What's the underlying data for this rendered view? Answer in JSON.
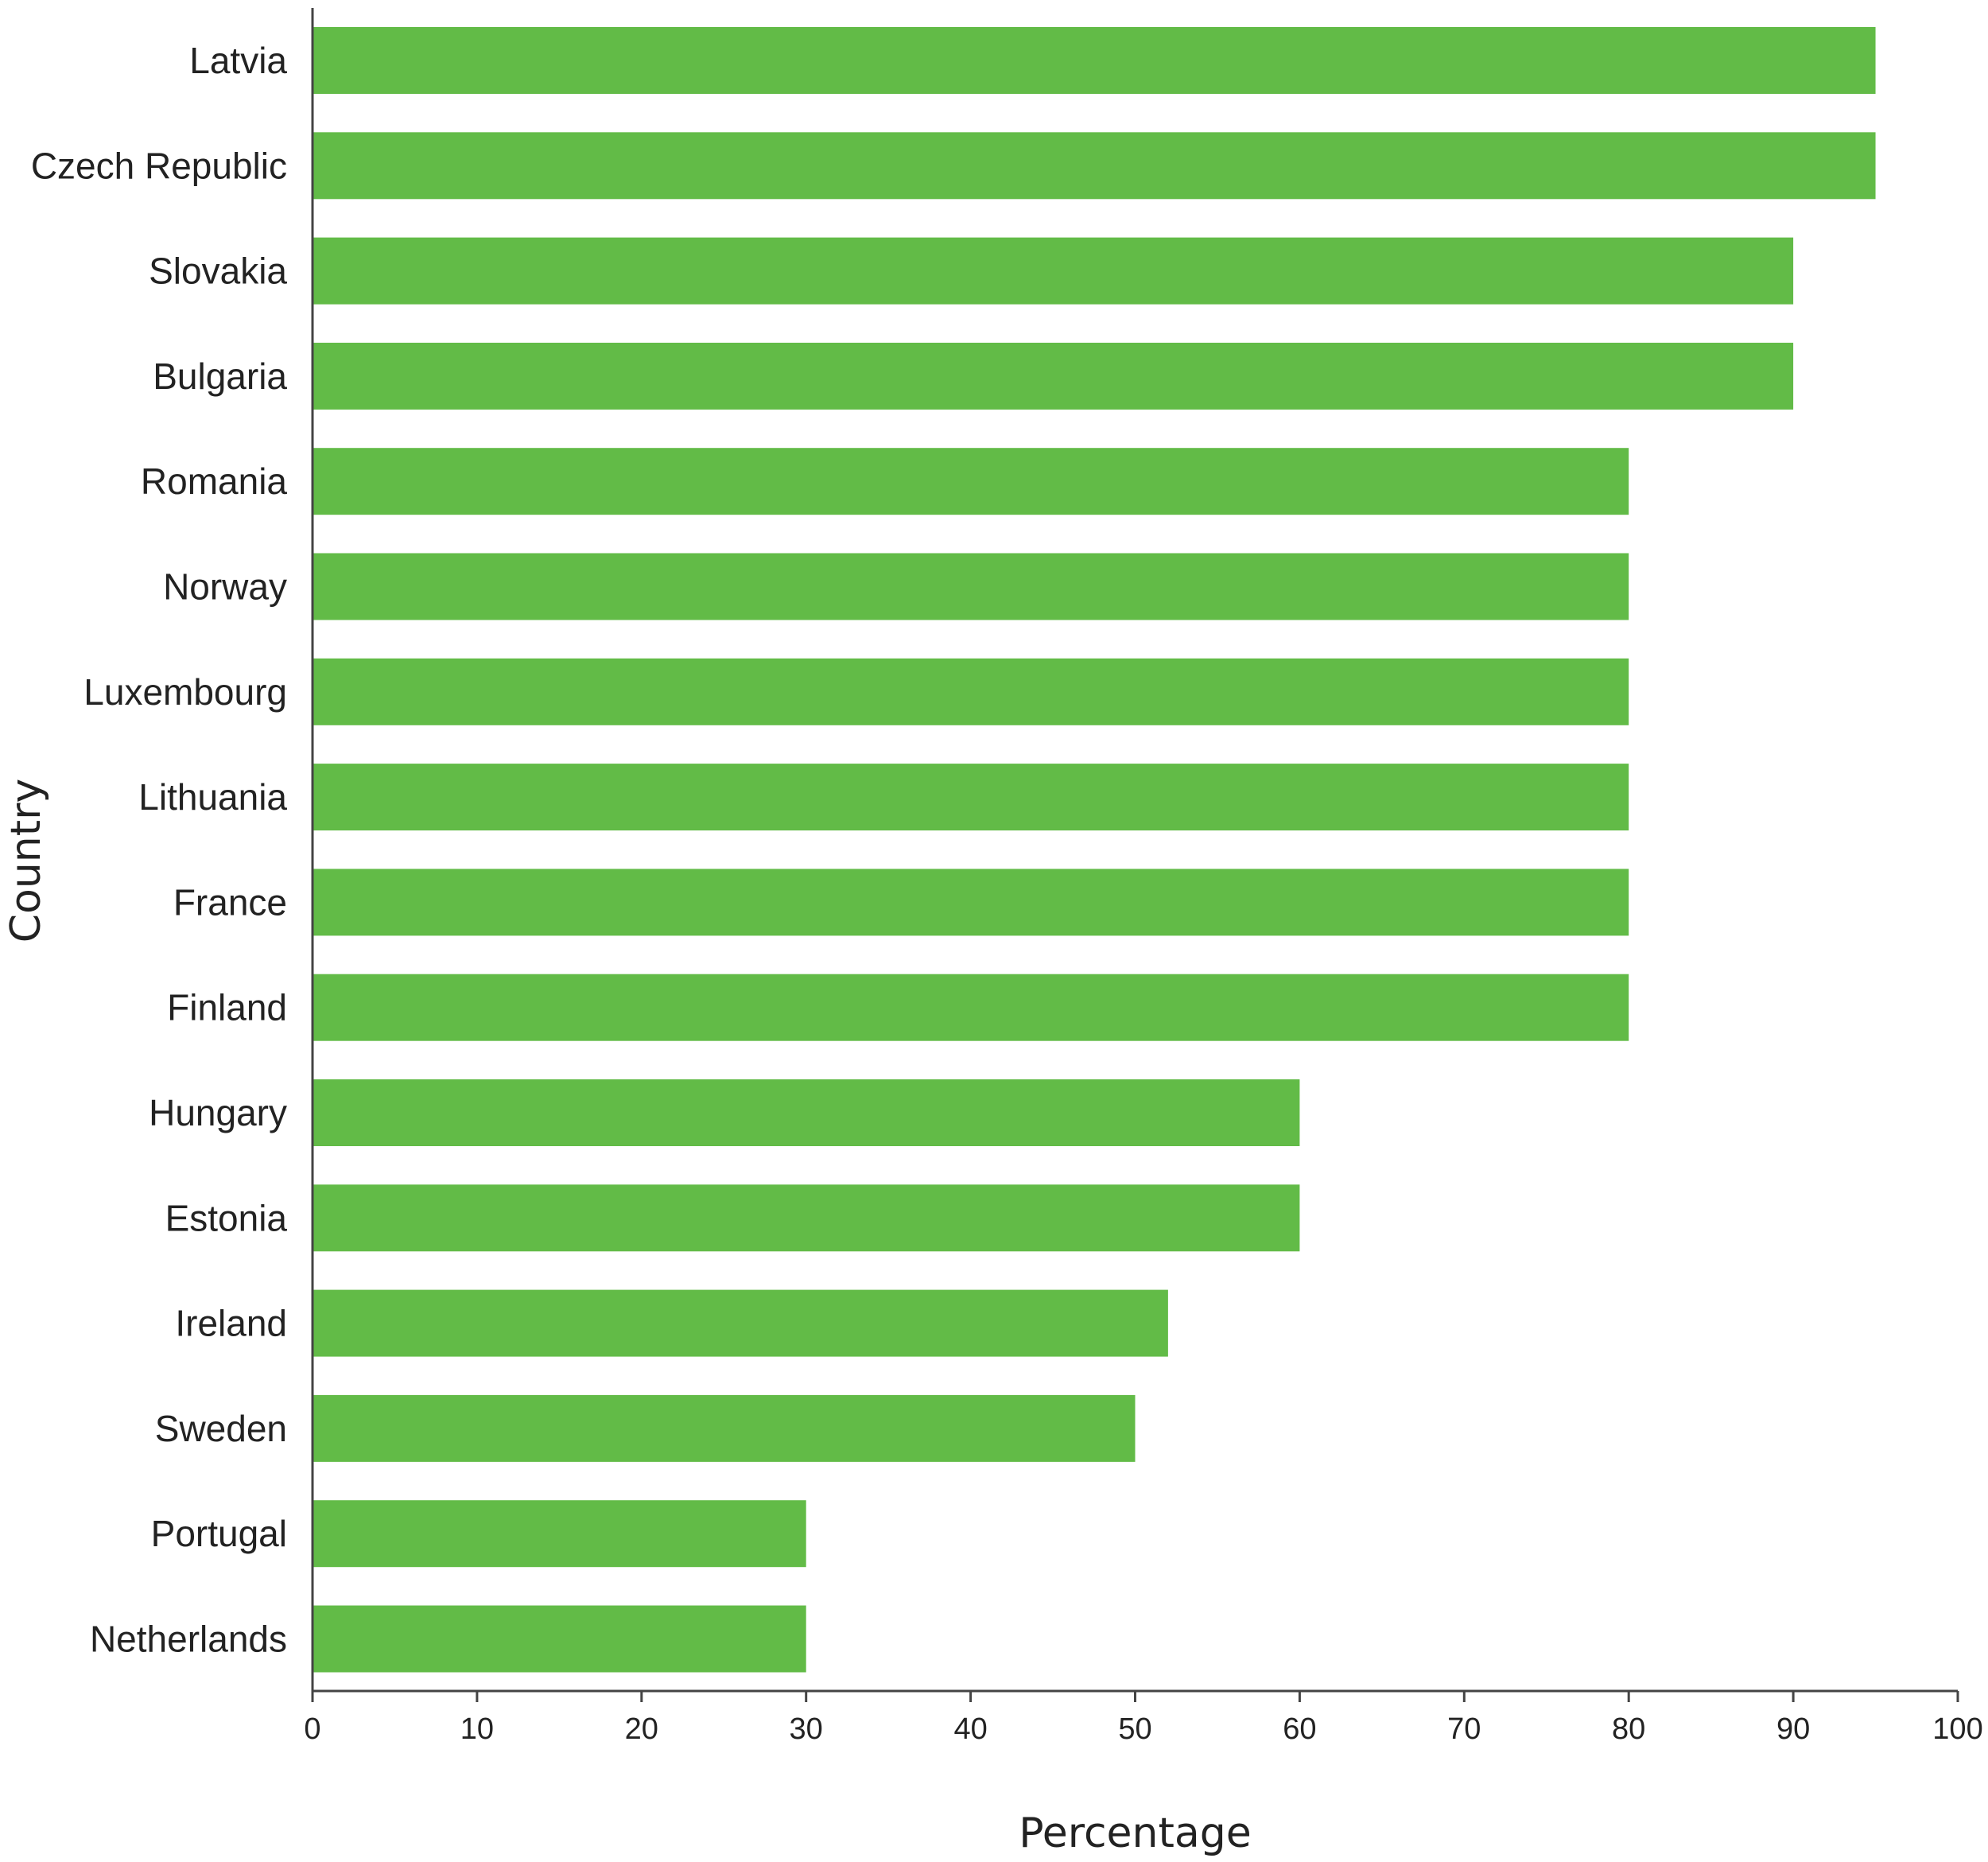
{
  "chart_data": {
    "type": "bar",
    "orientation": "horizontal",
    "categories": [
      "Latvia",
      "Czech Republic",
      "Slovakia",
      "Bulgaria",
      "Romania",
      "Norway",
      "Luxembourg",
      "Lithuania",
      "France",
      "Finland",
      "Hungary",
      "Estonia",
      "Ireland",
      "Sweden",
      "Portugal",
      "Netherlands"
    ],
    "values": [
      95,
      95,
      90,
      90,
      80,
      80,
      80,
      80,
      80,
      80,
      60,
      60,
      52,
      50,
      30,
      30
    ],
    "xlabel": "Percentage",
    "ylabel": "Country",
    "xlim": [
      0,
      100
    ],
    "xticks": [
      "0",
      "10",
      "20",
      "30",
      "40",
      "50",
      "60",
      "70",
      "80",
      "90",
      "100"
    ],
    "grid": false,
    "legend": "none",
    "bar_color": "#62bb47"
  }
}
